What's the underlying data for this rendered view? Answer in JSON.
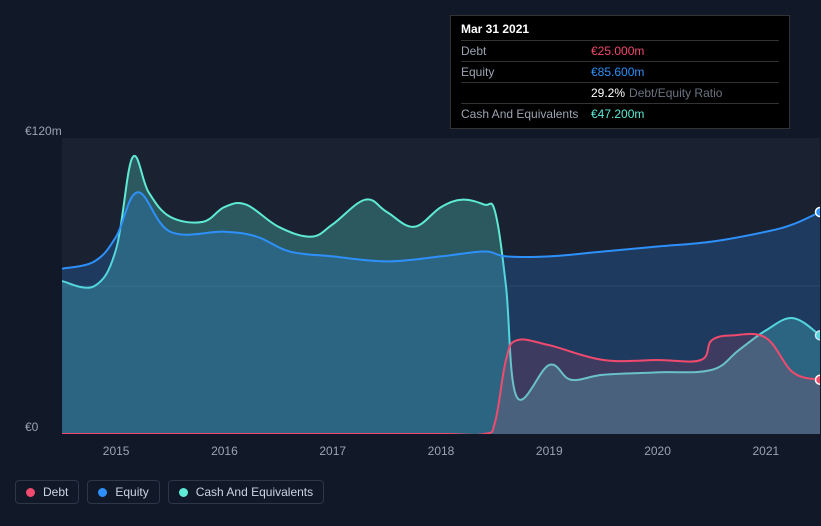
{
  "chart": {
    "type": "area-line",
    "background_color": "#111827",
    "plot_background": "#1a2232",
    "grid_color": "#2a3447",
    "x_years": [
      2015,
      2016,
      2017,
      2018,
      2019,
      2020,
      2021
    ],
    "xlim": [
      2014.5,
      2021.5
    ],
    "ylim": [
      0,
      120
    ],
    "y_ticks": [
      {
        "value": 0,
        "label": "€0"
      },
      {
        "value": 60,
        "label": ""
      },
      {
        "value": 120,
        "label": "€120m"
      }
    ],
    "label_fontsize": 12,
    "series": [
      {
        "name": "Cash And Equivalents",
        "color": "#5eead4",
        "fill_opacity": 0.28,
        "line_width": 2,
        "marker_end": true,
        "x": [
          2014.5,
          2014.8,
          2015.0,
          2015.15,
          2015.3,
          2015.5,
          2015.8,
          2016.0,
          2016.2,
          2016.5,
          2016.8,
          2017.0,
          2017.3,
          2017.5,
          2017.75,
          2018.0,
          2018.2,
          2018.4,
          2018.5,
          2018.6,
          2018.7,
          2019.0,
          2019.2,
          2019.5,
          2020.0,
          2020.5,
          2020.75,
          2021.0,
          2021.25,
          2021.5
        ],
        "y": [
          62,
          60,
          75,
          112,
          98,
          88,
          86,
          92,
          93,
          84,
          80,
          85,
          95,
          90,
          84,
          92,
          95,
          93,
          90,
          60,
          15,
          28,
          22,
          24,
          25,
          26,
          34,
          42,
          47,
          40
        ]
      },
      {
        "name": "Equity",
        "color": "#2e90fa",
        "fill_opacity": 0.22,
        "line_width": 2,
        "marker_end": true,
        "x": [
          2014.5,
          2014.8,
          2015.0,
          2015.2,
          2015.5,
          2016.0,
          2016.3,
          2016.6,
          2017.0,
          2017.5,
          2018.0,
          2018.4,
          2018.6,
          2019.0,
          2019.5,
          2020.0,
          2020.5,
          2021.0,
          2021.25,
          2021.5
        ],
        "y": [
          67,
          70,
          80,
          98,
          82,
          82,
          80,
          74,
          72,
          70,
          72,
          74,
          72,
          72,
          74,
          76,
          78,
          82,
          85,
          90
        ]
      },
      {
        "name": "Debt",
        "color": "#f04a6e",
        "fill_opacity": 0.15,
        "line_width": 2,
        "marker_end": true,
        "x": [
          2014.5,
          2015.0,
          2016.0,
          2017.0,
          2018.0,
          2018.4,
          2018.5,
          2018.6,
          2018.7,
          2019.0,
          2019.5,
          2020.0,
          2020.4,
          2020.5,
          2020.7,
          2021.0,
          2021.25,
          2021.5
        ],
        "y": [
          0,
          0,
          0,
          0,
          0,
          0,
          5,
          30,
          38,
          36,
          30,
          30,
          30,
          38,
          40,
          39,
          25,
          22
        ]
      }
    ]
  },
  "tooltip": {
    "date": "Mar 31 2021",
    "rows": [
      {
        "label": "Debt",
        "value": "€25.000m",
        "color": "#f04a6e"
      },
      {
        "label": "Equity",
        "value": "€85.600m",
        "color": "#2e90fa"
      },
      {
        "label": "",
        "value": "29.2%",
        "color": "#ffffff",
        "suffix": "Debt/Equity Ratio"
      },
      {
        "label": "Cash And Equivalents",
        "value": "€47.200m",
        "color": "#5eead4"
      }
    ]
  },
  "legend": [
    {
      "label": "Debt",
      "color": "#f04a6e"
    },
    {
      "label": "Equity",
      "color": "#2e90fa"
    },
    {
      "label": "Cash And Equivalents",
      "color": "#5eead4"
    }
  ]
}
